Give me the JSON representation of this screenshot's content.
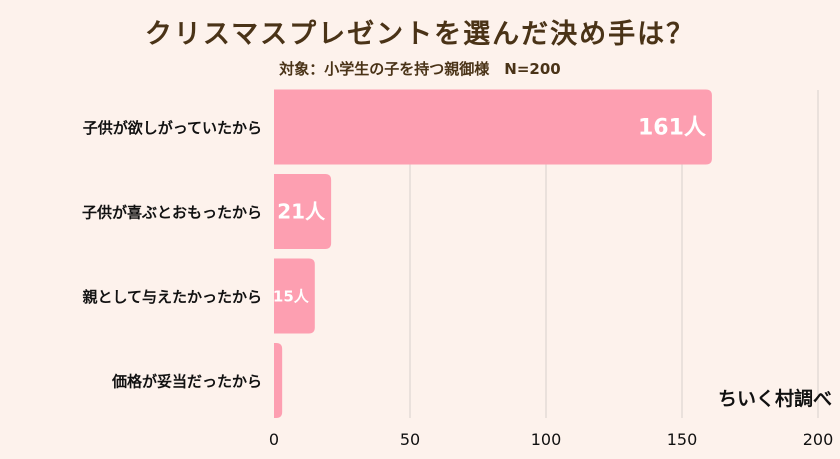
{
  "chart_data": {
    "type": "bar",
    "orientation": "horizontal",
    "title": "クリスマスプレゼントを選んだ決め手は？",
    "subtitle": "対象：小学生の子を持つ親御様　N=200",
    "categories": [
      "子供が欲しがっていたから",
      "子供が喜ぶとおもったから",
      "親として与えたかったから",
      "価格が妥当だったから"
    ],
    "values": [
      161,
      21,
      15,
      3
    ],
    "data_labels": [
      "161人",
      "21人",
      "15人",
      ""
    ],
    "xlim": [
      0,
      200
    ],
    "xticks": [
      0,
      50,
      100,
      150,
      200
    ],
    "xtick_labels": [
      "0",
      "50",
      "100",
      "150",
      "200"
    ],
    "grid": "vertical",
    "bar_color": "#fd9fb1",
    "source": "ちいく村調べ"
  }
}
